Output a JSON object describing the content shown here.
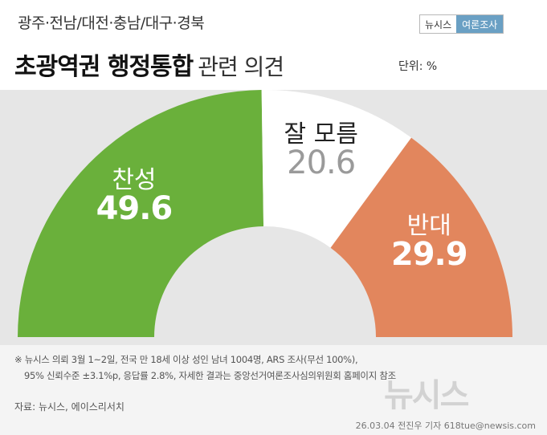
{
  "header": {
    "region": "광주·전남/대전·충남/대구·경북",
    "title_main": "초광역권 행정통합",
    "title_sub": "관련 의견",
    "unit": "단위: %",
    "badge_brand": "뉴시스",
    "badge_tag": "여론조사"
  },
  "chart_data": {
    "type": "pie",
    "style": "semicircle-gauge",
    "unit": "%",
    "categories": [
      "찬성",
      "잘 모름",
      "반대"
    ],
    "values": [
      49.6,
      20.6,
      29.9
    ],
    "value_labels": [
      "49.6",
      "20.6",
      "29.9"
    ],
    "colors": [
      "#6ab03b",
      "#ffffff",
      "#e2865d"
    ],
    "value_colors": [
      "#ffffff",
      "#9a9a9a",
      "#ffffff"
    ],
    "category_colors": [
      "#ffffff",
      "#222222",
      "#ffffff"
    ],
    "background": "#e6e6e6"
  },
  "footer": {
    "note_line1": "※ 뉴시스 의뢰 3월 1~2일, 전국 만 18세 이상 성인 남녀 1004명, ARS 조사(무선 100%),",
    "note_line2": "95% 신뢰수준 ±3.1%p, 응답률 2.8%, 자세한 결과는 중앙선거여론조사심의위원회 홈페이지 참조",
    "source": "자료: 뉴시스, 에이스리서치",
    "byline": "26.03.04 전진우 기자 618tue@newsis.com",
    "watermark": "뉴시스"
  }
}
